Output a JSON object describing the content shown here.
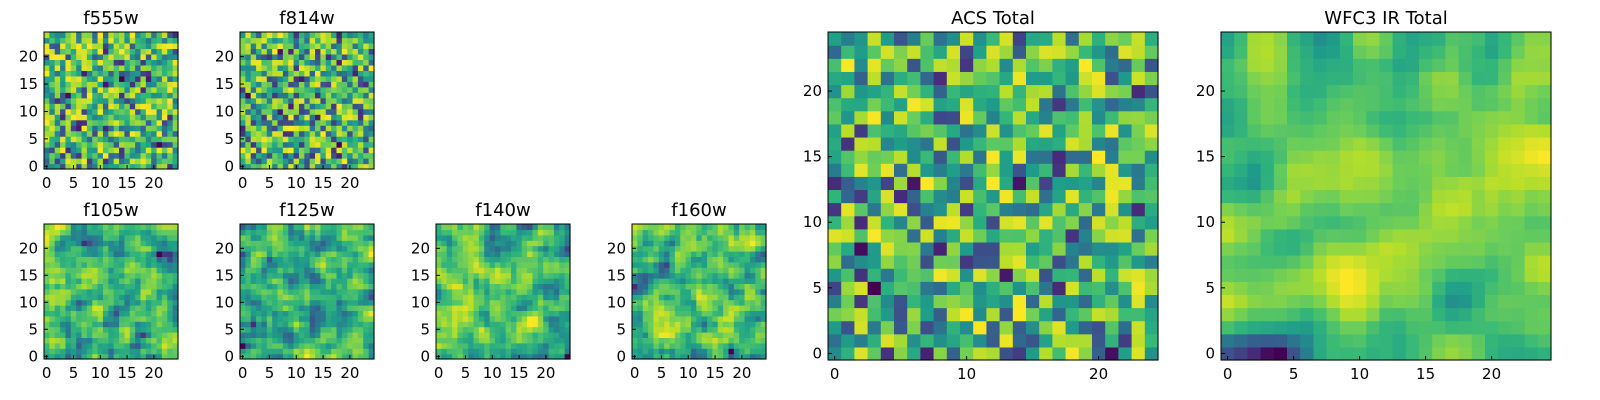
{
  "chart_data": [
    {
      "id": "f555w",
      "type": "heatmap",
      "title": "f555w",
      "grid_size": 25,
      "seed": 11,
      "smooth": 0,
      "xticks": [
        "0",
        "5",
        "10",
        "15",
        "20"
      ],
      "yticks": [
        "0",
        "5",
        "10",
        "15",
        "20"
      ],
      "tick_values": [
        0,
        5,
        10,
        15,
        20
      ],
      "colormap": "viridis"
    },
    {
      "id": "f814w",
      "type": "heatmap",
      "title": "f814w",
      "grid_size": 25,
      "seed": 23,
      "smooth": 0,
      "xticks": [
        "0",
        "5",
        "10",
        "15",
        "20"
      ],
      "yticks": [
        "0",
        "5",
        "10",
        "15",
        "20"
      ],
      "tick_values": [
        0,
        5,
        10,
        15,
        20
      ],
      "colormap": "viridis"
    },
    {
      "id": "f105w",
      "type": "heatmap",
      "title": "f105w",
      "grid_size": 25,
      "seed": 37,
      "smooth": 1,
      "xticks": [
        "0",
        "5",
        "10",
        "15",
        "20"
      ],
      "yticks": [
        "0",
        "5",
        "10",
        "15",
        "20"
      ],
      "tick_values": [
        0,
        5,
        10,
        15,
        20
      ],
      "colormap": "viridis"
    },
    {
      "id": "f125w",
      "type": "heatmap",
      "title": "f125w",
      "grid_size": 25,
      "seed": 41,
      "smooth": 1,
      "xticks": [
        "0",
        "5",
        "10",
        "15",
        "20"
      ],
      "yticks": [
        "0",
        "5",
        "10",
        "15",
        "20"
      ],
      "tick_values": [
        0,
        5,
        10,
        15,
        20
      ],
      "colormap": "viridis"
    },
    {
      "id": "f140w",
      "type": "heatmap",
      "title": "f140w",
      "grid_size": 25,
      "seed": 53,
      "smooth": 1,
      "xticks": [
        "0",
        "5",
        "10",
        "15",
        "20"
      ],
      "yticks": [
        "0",
        "5",
        "10",
        "15",
        "20"
      ],
      "tick_values": [
        0,
        5,
        10,
        15,
        20
      ],
      "colormap": "viridis"
    },
    {
      "id": "f160w",
      "type": "heatmap",
      "title": "f160w",
      "grid_size": 25,
      "seed": 67,
      "smooth": 1,
      "xticks": [
        "0",
        "5",
        "10",
        "15",
        "20"
      ],
      "yticks": [
        "0",
        "5",
        "10",
        "15",
        "20"
      ],
      "tick_values": [
        0,
        5,
        10,
        15,
        20
      ],
      "colormap": "viridis"
    },
    {
      "id": "acs_total",
      "type": "heatmap",
      "title": "ACS Total",
      "grid_size": 25,
      "seed": 79,
      "smooth": 0,
      "xticks": [
        "0",
        "10",
        "20"
      ],
      "yticks": [
        "0",
        "5",
        "10",
        "15",
        "20"
      ],
      "xtick_values": [
        0,
        10,
        20
      ],
      "tick_values": [
        0,
        5,
        10,
        15,
        20
      ],
      "colormap": "viridis"
    },
    {
      "id": "wfc3_ir_total",
      "type": "heatmap",
      "title": "WFC3 IR Total",
      "grid_size": 25,
      "seed": 97,
      "smooth": 2,
      "xticks": [
        "0",
        "5",
        "10",
        "15",
        "20"
      ],
      "yticks": [
        "0",
        "5",
        "10",
        "15",
        "20"
      ],
      "tick_values": [
        0,
        5,
        10,
        15,
        20
      ],
      "colormap": "viridis"
    }
  ]
}
